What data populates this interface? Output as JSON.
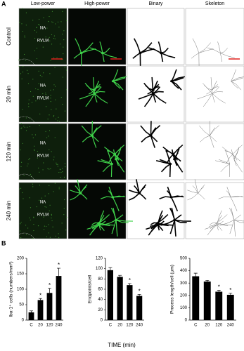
{
  "panel_labels": [
    "A",
    "B"
  ],
  "panel_a": {
    "columns": [
      "Low-power",
      "High-power",
      "Binary",
      "Skeleton"
    ],
    "rows": [
      "Control",
      "20 min",
      "120 min",
      "240 min"
    ],
    "region_labels": [
      "NA",
      "RVLM"
    ]
  },
  "chart_data": [
    {
      "type": "bar",
      "y_label": "Iba-1⁺ cells (numbers/mm²)",
      "categories": [
        "C",
        "20",
        "120",
        "240"
      ],
      "values": [
        25,
        65,
        88,
        143
      ],
      "errors": [
        5,
        5,
        15,
        25
      ],
      "significance": [
        null,
        "*",
        "*",
        "*"
      ],
      "ylim": [
        0,
        200
      ],
      "yticks": [
        0,
        50,
        100,
        150,
        200
      ],
      "color": "#000000"
    },
    {
      "type": "bar",
      "y_label": "Endpoints/cell",
      "categories": [
        "C",
        "20",
        "120",
        "240"
      ],
      "values": [
        97,
        84,
        68,
        47
      ],
      "errors": [
        5,
        3,
        3,
        3
      ],
      "significance": [
        null,
        null,
        "*",
        "*"
      ],
      "ylim": [
        0,
        120
      ],
      "yticks": [
        0,
        20,
        40,
        60,
        80,
        100,
        120
      ],
      "color": "#000000"
    },
    {
      "type": "bar",
      "y_label": "Process length/cell (µm)",
      "categories": [
        "C",
        "20",
        "120",
        "240"
      ],
      "values": [
        355,
        312,
        230,
        205
      ],
      "errors": [
        25,
        10,
        12,
        12
      ],
      "significance": [
        null,
        null,
        "*",
        "*"
      ],
      "ylim": [
        0,
        500
      ],
      "yticks": [
        0,
        100,
        200,
        300,
        400,
        500
      ],
      "color": "#000000"
    }
  ],
  "x_label": "TIME (min)"
}
